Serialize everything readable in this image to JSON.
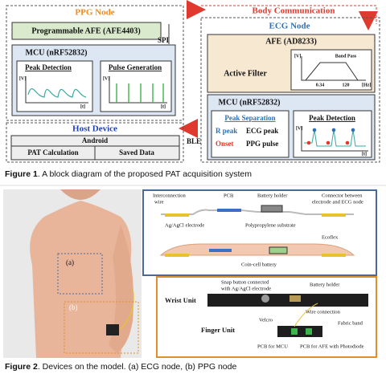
{
  "figure1": {
    "ppg_node": {
      "title": "PPG Node",
      "afe": "Programmable AFE (AFE4403)",
      "spi": "SPI",
      "mcu": {
        "title": "MCU (nRF52832)",
        "peak_detection": "Peak Detection",
        "pulse_generation": "Pulse Generation",
        "pd_v": "[V]",
        "pd_t": "[t]",
        "pg_v": "[V]",
        "pg_t": "[t]"
      }
    },
    "body_communication": "Body Communication",
    "ecg_node": {
      "title": "ECG Node",
      "afe": "AFE (AD8233)",
      "filter": {
        "title": "Active Filter",
        "v": "[V]",
        "band": "Band Pass",
        "low": "0.34",
        "high": "120",
        "unit": "[Hz]"
      },
      "mcu": {
        "title": "MCU (nRF52832)",
        "peak_separation": "Peak Separation",
        "r_peak": "R peak",
        "ecg_peak": "ECG peak",
        "onset": "Onset",
        "ppg_pulse": "PPG pulse",
        "peak_detection": "Peak Detection",
        "pd_v": "[V]",
        "pd_t": "[t]"
      }
    },
    "host": {
      "title": "Host Device",
      "android": "Android",
      "pat": "PAT Calculation",
      "saved": "Saved Data"
    },
    "ble": "BLE",
    "caption": {
      "label": "Figure 1",
      "text": ". A block diagram of the proposed PAT acquisition system"
    }
  },
  "figure2": {
    "photo_a": "(a)",
    "photo_b": "(b)",
    "ecg": {
      "interconnection": "Interconnection",
      "wire": "wire",
      "pcb": "PCB",
      "battery_holder": "Battery holder",
      "connector1": "Connector between",
      "connector2": "electrode and ECG node",
      "electrode": "Ag/AgCl electrode",
      "substrate": "Polypropylene substrate",
      "ecoflex": "Ecoflex",
      "coin_cell": "Coin-cell battery"
    },
    "ppg": {
      "wrist_unit": "Wrist Unit",
      "snap1": "Snap button connected",
      "snap2": "with Ag/AgCl electrode",
      "battery_holder": "Battery holder",
      "wire_connection": "Wire connection",
      "velcro": "Velcro",
      "finger_unit": "Finger Unit",
      "fabric_band": "Fabric band",
      "pcb_mcu": "PCB for MCU",
      "pcb_afe": "PCB for AFE with Photodiode"
    },
    "caption": {
      "label": "Figure 2",
      "text": ". Devices on the model. (a) ECG node, (b) PPG node"
    }
  }
}
